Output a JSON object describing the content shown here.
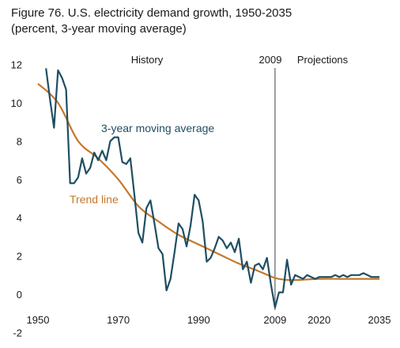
{
  "title_line1": "Figure 76. U.S. electricity demand growth, 1950-2035",
  "title_line2": "(percent, 3-year moving average)",
  "chart_data": {
    "type": "line",
    "title": "Figure 76. U.S. electricity demand growth, 1950-2035",
    "subtitle": "(percent, 3-year moving average)",
    "ylim": [
      -2,
      12
    ],
    "xlim": [
      1950,
      2035
    ],
    "y_ticks": [
      "-2",
      "0",
      "2",
      "4",
      "6",
      "8",
      "10",
      "12"
    ],
    "x_ticks": [
      "1950",
      "1970",
      "1990",
      "2009",
      "2020",
      "2035"
    ],
    "grid": false,
    "divider_year": 2009,
    "annotations": {
      "history": "History",
      "divider": "2009",
      "projections": "Projections",
      "moving_average": "3-year moving average",
      "trend": "Trend line"
    },
    "colors": {
      "moving_average": "#1f4e63",
      "trend": "#c5782a",
      "divider": "#808080"
    },
    "series": [
      {
        "name": "3-year moving average",
        "x": [
          1952,
          1953,
          1954,
          1955,
          1956,
          1957,
          1958,
          1959,
          1960,
          1961,
          1962,
          1963,
          1964,
          1965,
          1966,
          1967,
          1968,
          1969,
          1970,
          1971,
          1972,
          1973,
          1974,
          1975,
          1976,
          1977,
          1978,
          1979,
          1980,
          1981,
          1982,
          1983,
          1984,
          1985,
          1986,
          1987,
          1988,
          1989,
          1990,
          1991,
          1992,
          1993,
          1994,
          1995,
          1996,
          1997,
          1998,
          1999,
          2000,
          2001,
          2002,
          2003,
          2004,
          2005,
          2006,
          2007,
          2008,
          2009,
          2010,
          2011,
          2012,
          2013,
          2014,
          2015,
          2016,
          2017,
          2018,
          2019,
          2020,
          2021,
          2022,
          2023,
          2024,
          2025,
          2026,
          2027,
          2028,
          2029,
          2030,
          2031,
          2032,
          2033,
          2034,
          2035
        ],
        "values": [
          11.8,
          10.2,
          8.7,
          11.7,
          11.3,
          10.7,
          5.8,
          5.8,
          6.1,
          7.1,
          6.3,
          6.6,
          7.4,
          7.0,
          7.5,
          7.0,
          8.0,
          8.2,
          8.2,
          6.9,
          6.8,
          7.1,
          5.2,
          3.2,
          2.7,
          4.5,
          4.9,
          3.7,
          2.4,
          2.1,
          0.2,
          0.8,
          2.2,
          3.7,
          3.4,
          2.5,
          3.6,
          5.2,
          4.9,
          3.8,
          1.7,
          1.9,
          2.4,
          3.0,
          2.8,
          2.4,
          2.7,
          2.2,
          2.9,
          1.3,
          1.7,
          0.6,
          1.5,
          1.6,
          1.3,
          1.9,
          0.5,
          -0.7,
          0.1,
          0.1,
          1.8,
          0.5,
          1.0,
          0.9,
          0.8,
          1.0,
          0.9,
          0.8,
          0.9,
          0.9,
          0.9,
          0.9,
          1.0,
          0.9,
          1.0,
          0.9,
          1.0,
          1.0,
          1.0,
          1.1,
          1.0,
          0.9,
          0.9,
          0.9
        ]
      },
      {
        "name": "Trend line",
        "x": [
          1950,
          1955,
          1960,
          1965,
          1970,
          1975,
          1980,
          1985,
          1990,
          1995,
          2000,
          2005,
          2009,
          2012,
          2015,
          2020,
          2025,
          2030,
          2035
        ],
        "values": [
          11.0,
          10.0,
          8.0,
          7.1,
          6.0,
          4.6,
          3.8,
          3.1,
          2.6,
          2.1,
          1.6,
          1.2,
          0.85,
          0.75,
          0.75,
          0.8,
          0.8,
          0.8,
          0.8
        ]
      }
    ]
  }
}
